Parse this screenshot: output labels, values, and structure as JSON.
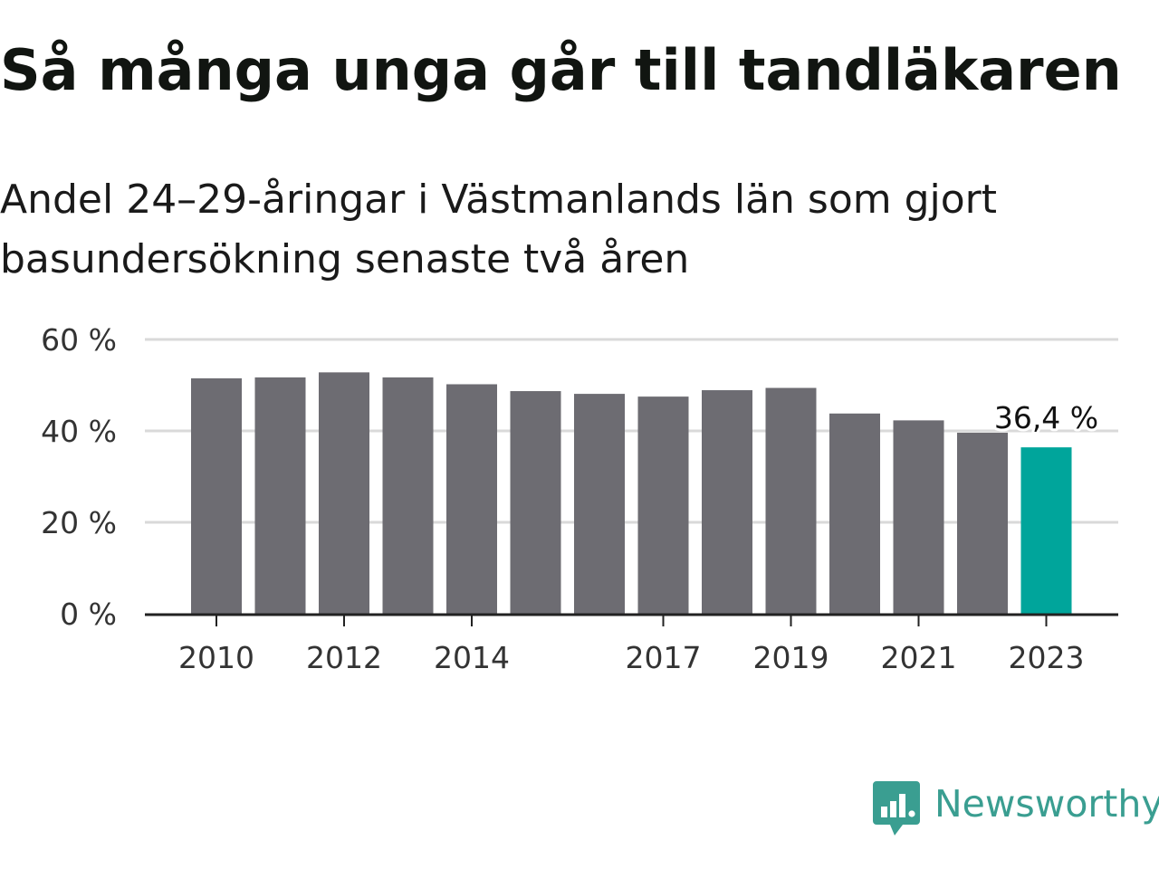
{
  "title": "Så många unga går till tandläkaren",
  "subtitle": "Andel 24–29-åringar i Västmanlands län som gjort basundersökning senaste två åren",
  "brand": {
    "name": "Newsworthy",
    "logo_icon": "bar-chart-speech-bubble-icon",
    "color": "#3a9e91"
  },
  "colors": {
    "bar": "#6d6c72",
    "highlight": "#00a59b",
    "grid": "#d9d9d9",
    "axis": "#222222"
  },
  "chart_data": {
    "type": "bar",
    "categories": [
      "2010",
      "2011",
      "2012",
      "2013",
      "2014",
      "2015",
      "2016",
      "2017",
      "2018",
      "2019",
      "2020",
      "2021",
      "2022",
      "2023"
    ],
    "values": [
      51.5,
      51.7,
      52.8,
      51.7,
      50.2,
      48.7,
      48.1,
      47.5,
      48.9,
      49.4,
      43.8,
      42.3,
      39.6,
      36.4
    ],
    "highlight_index": 13,
    "highlight_label": "36,4 %",
    "xtick_labels": [
      "2010",
      "2012",
      "2014",
      "2017",
      "2019",
      "2021",
      "2023"
    ],
    "yticks": [
      0,
      20,
      40,
      60
    ],
    "ytick_labels": [
      "0 %",
      "20 %",
      "40 %",
      "60 %"
    ],
    "ylim": [
      0,
      60
    ],
    "grid": true,
    "xlabel": "",
    "ylabel": ""
  }
}
